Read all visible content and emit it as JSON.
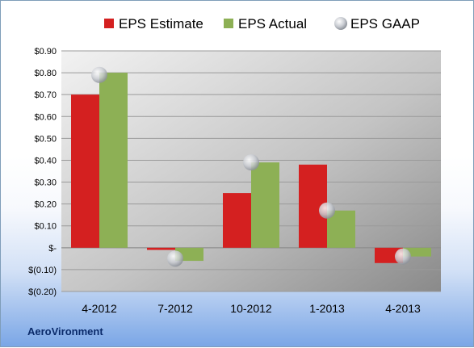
{
  "company": "AeroVironment",
  "chart_data": {
    "type": "bar",
    "categories": [
      "4-2012",
      "7-2012",
      "10-2012",
      "1-2013",
      "4-2013"
    ],
    "series": [
      {
        "name": "EPS Estimate",
        "kind": "bar",
        "color": "#d42020",
        "values": [
          0.7,
          -0.01,
          0.25,
          0.38,
          -0.07
        ]
      },
      {
        "name": "EPS Actual",
        "kind": "bar",
        "color": "#8db055",
        "values": [
          0.8,
          -0.06,
          0.39,
          0.17,
          -0.04
        ]
      },
      {
        "name": "EPS GAAP",
        "kind": "marker",
        "color": "#b9bec6",
        "values": [
          0.79,
          -0.05,
          0.39,
          0.17,
          -0.04
        ]
      }
    ],
    "ylim": [
      -0.2,
      0.9
    ],
    "yticks": [
      {
        "value": 0.9,
        "label": "$0.90"
      },
      {
        "value": 0.8,
        "label": "$0.80"
      },
      {
        "value": 0.7,
        "label": "$0.70"
      },
      {
        "value": 0.6,
        "label": "$0.60"
      },
      {
        "value": 0.5,
        "label": "$0.50"
      },
      {
        "value": 0.4,
        "label": "$0.40"
      },
      {
        "value": 0.3,
        "label": "$0.30"
      },
      {
        "value": 0.2,
        "label": "$0.20"
      },
      {
        "value": 0.1,
        "label": "$0.10"
      },
      {
        "value": 0.0,
        "label": "$-"
      },
      {
        "value": -0.1,
        "label": "$(0.10)"
      },
      {
        "value": -0.2,
        "label": "$(0.20)"
      }
    ],
    "grid": true,
    "legend_position": "top"
  }
}
